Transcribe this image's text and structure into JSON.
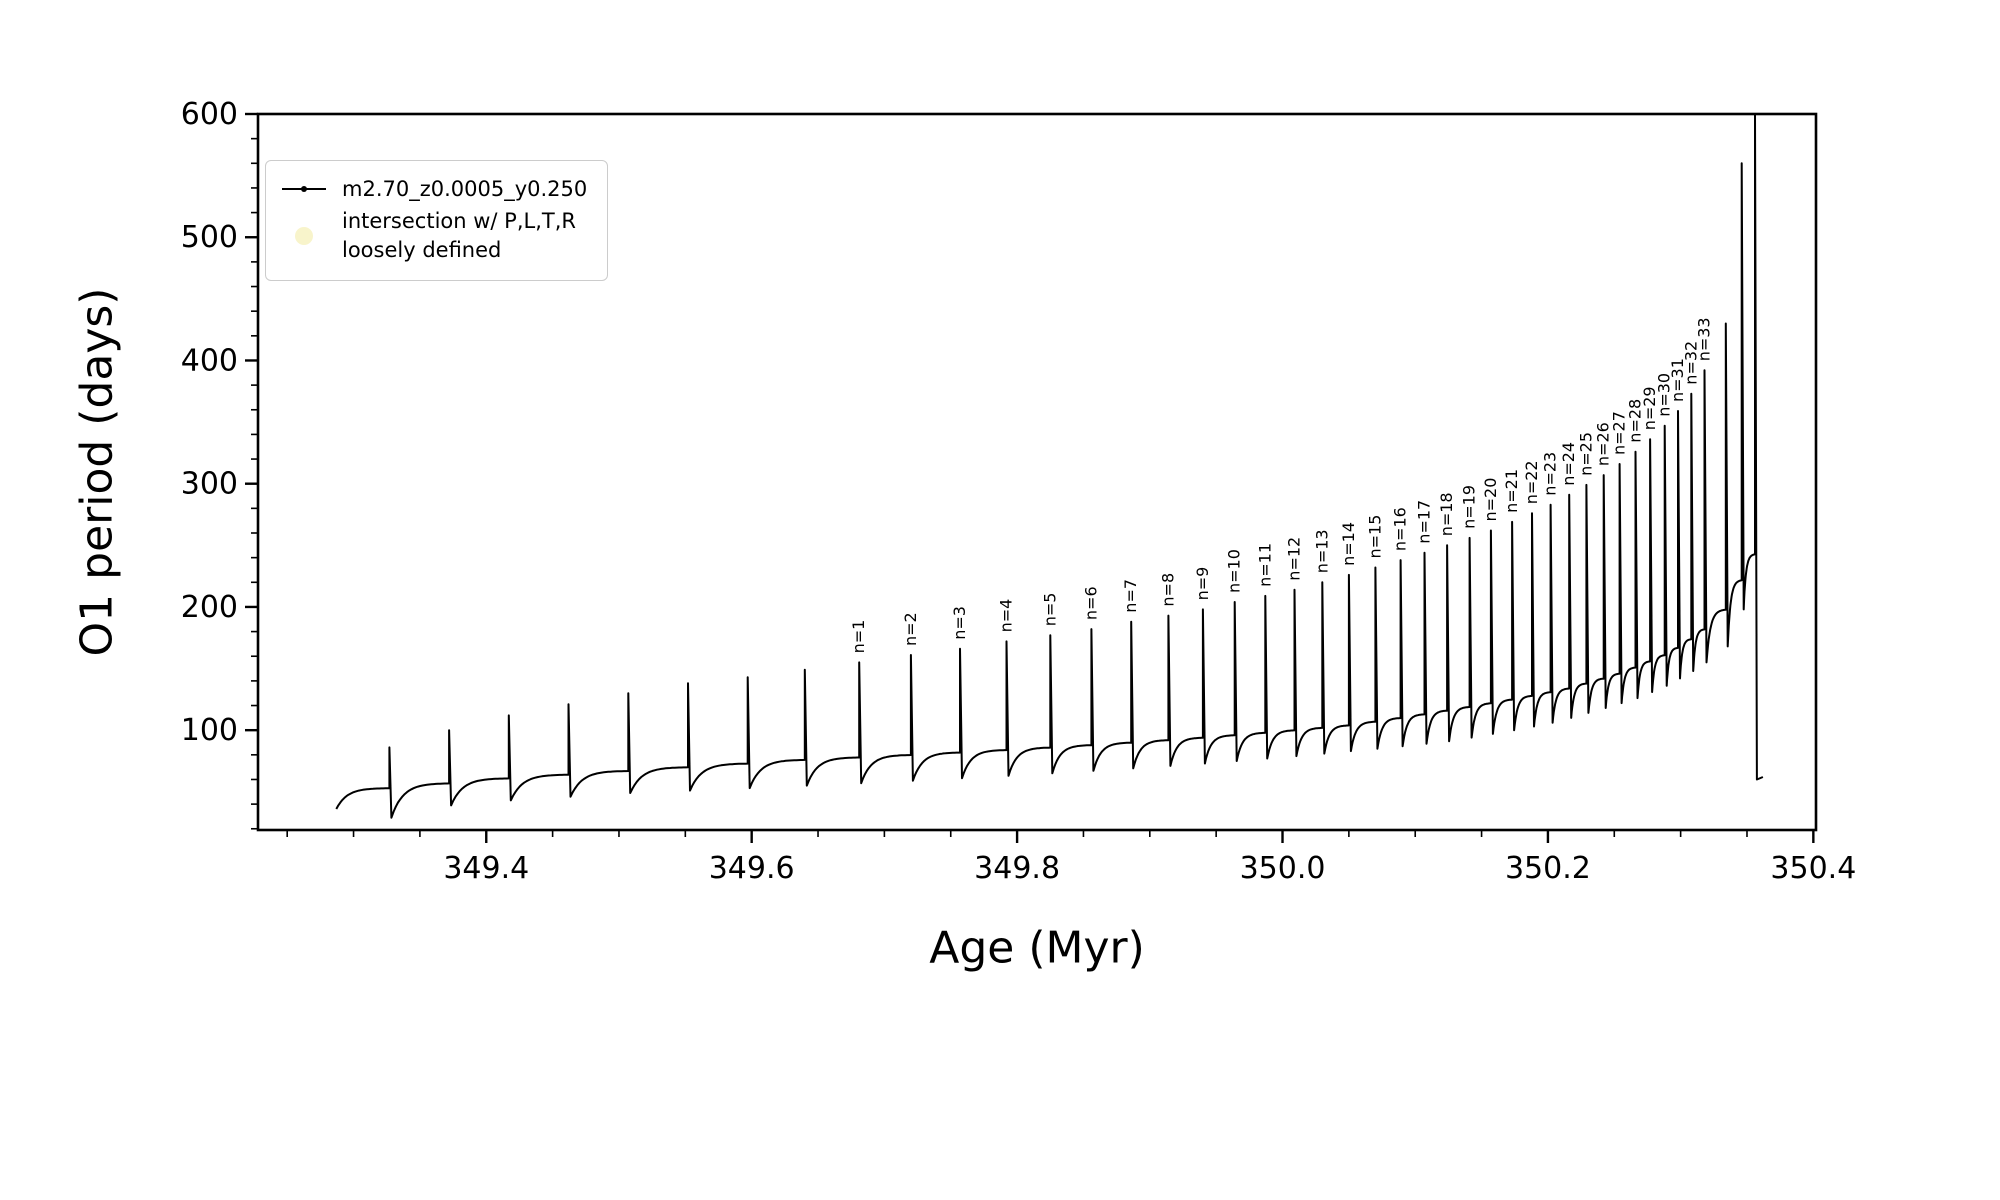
{
  "figure": {
    "background_color": "#ffffff",
    "line_color": "#000000",
    "intersection_marker_color": "#f0e68c"
  },
  "chart_data": {
    "type": "line",
    "title": "",
    "xlabel": "Age (Myr)",
    "ylabel": "O1 period (days)",
    "xlim": [
      349.228,
      350.402
    ],
    "ylim": [
      19,
      600
    ],
    "x_major_ticks": [
      349.4,
      349.6,
      349.8,
      350.0,
      350.2,
      350.4
    ],
    "y_major_ticks": [
      100,
      200,
      300,
      400,
      500,
      600
    ],
    "x_minor_step": 0.05,
    "y_minor_step": 20,
    "grid": false,
    "legend": {
      "position": "upper left",
      "entries": [
        {
          "label": "m2.70_z0.0005_y0.250",
          "marker": "line-dot",
          "color": "#000000"
        },
        {
          "label_lines": [
            "intersection w/ P,L,T,R",
            "loosely defined"
          ],
          "marker": "circle",
          "color": "#f0e68c"
        }
      ]
    },
    "series_name": "m2.70_z0.0005_y0.250",
    "start": {
      "x": 349.287,
      "y": 36
    },
    "end": {
      "x": 350.362,
      "y": 62
    },
    "pulses": [
      {
        "n": null,
        "x": 349.327,
        "peak": 86,
        "base": 53,
        "dip": 29
      },
      {
        "n": null,
        "x": 349.372,
        "peak": 100,
        "base": 57,
        "dip": 39
      },
      {
        "n": null,
        "x": 349.417,
        "peak": 112,
        "base": 61,
        "dip": 43
      },
      {
        "n": null,
        "x": 349.462,
        "peak": 121,
        "base": 64,
        "dip": 46
      },
      {
        "n": null,
        "x": 349.507,
        "peak": 130,
        "base": 67,
        "dip": 49
      },
      {
        "n": null,
        "x": 349.552,
        "peak": 138,
        "base": 70,
        "dip": 51
      },
      {
        "n": null,
        "x": 349.597,
        "peak": 143,
        "base": 73,
        "dip": 53
      },
      {
        "n": null,
        "x": 349.64,
        "peak": 149,
        "base": 76,
        "dip": 55
      },
      {
        "n": 1,
        "x": 349.681,
        "peak": 155,
        "base": 78,
        "dip": 57
      },
      {
        "n": 2,
        "x": 349.72,
        "peak": 161,
        "base": 80,
        "dip": 59
      },
      {
        "n": 3,
        "x": 349.757,
        "peak": 166,
        "base": 82,
        "dip": 61
      },
      {
        "n": 4,
        "x": 349.792,
        "peak": 172,
        "base": 84,
        "dip": 63
      },
      {
        "n": 5,
        "x": 349.825,
        "peak": 177,
        "base": 86,
        "dip": 65
      },
      {
        "n": 6,
        "x": 349.856,
        "peak": 182,
        "base": 88,
        "dip": 67
      },
      {
        "n": 7,
        "x": 349.886,
        "peak": 188,
        "base": 90,
        "dip": 69
      },
      {
        "n": 8,
        "x": 349.914,
        "peak": 193,
        "base": 92,
        "dip": 71
      },
      {
        "n": 9,
        "x": 349.94,
        "peak": 198,
        "base": 94,
        "dip": 73
      },
      {
        "n": 10,
        "x": 349.964,
        "peak": 204,
        "base": 96,
        "dip": 75
      },
      {
        "n": 11,
        "x": 349.987,
        "peak": 209,
        "base": 98,
        "dip": 77
      },
      {
        "n": 12,
        "x": 350.009,
        "peak": 214,
        "base": 100,
        "dip": 79
      },
      {
        "n": 13,
        "x": 350.03,
        "peak": 220,
        "base": 102,
        "dip": 81
      },
      {
        "n": 14,
        "x": 350.05,
        "peak": 226,
        "base": 104,
        "dip": 83
      },
      {
        "n": 15,
        "x": 350.07,
        "peak": 232,
        "base": 107,
        "dip": 85
      },
      {
        "n": 16,
        "x": 350.089,
        "peak": 238,
        "base": 110,
        "dip": 87
      },
      {
        "n": 17,
        "x": 350.107,
        "peak": 244,
        "base": 113,
        "dip": 89
      },
      {
        "n": 18,
        "x": 350.124,
        "peak": 250,
        "base": 116,
        "dip": 91
      },
      {
        "n": 19,
        "x": 350.141,
        "peak": 256,
        "base": 119,
        "dip": 94
      },
      {
        "n": 20,
        "x": 350.157,
        "peak": 262,
        "base": 122,
        "dip": 97
      },
      {
        "n": 21,
        "x": 350.173,
        "peak": 269,
        "base": 125,
        "dip": 100
      },
      {
        "n": 22,
        "x": 350.188,
        "peak": 276,
        "base": 128,
        "dip": 103
      },
      {
        "n": 23,
        "x": 350.202,
        "peak": 283,
        "base": 131,
        "dip": 106
      },
      {
        "n": 24,
        "x": 350.216,
        "peak": 291,
        "base": 134,
        "dip": 110
      },
      {
        "n": 25,
        "x": 350.229,
        "peak": 299,
        "base": 138,
        "dip": 114
      },
      {
        "n": 26,
        "x": 350.242,
        "peak": 307,
        "base": 142,
        "dip": 118
      },
      {
        "n": 27,
        "x": 350.254,
        "peak": 316,
        "base": 146,
        "dip": 122
      },
      {
        "n": 28,
        "x": 350.266,
        "peak": 326,
        "base": 151,
        "dip": 126
      },
      {
        "n": 29,
        "x": 350.277,
        "peak": 336,
        "base": 156,
        "dip": 131
      },
      {
        "n": 30,
        "x": 350.288,
        "peak": 347,
        "base": 161,
        "dip": 136
      },
      {
        "n": 31,
        "x": 350.298,
        "peak": 359,
        "base": 167,
        "dip": 142
      },
      {
        "n": 32,
        "x": 350.308,
        "peak": 373,
        "base": 174,
        "dip": 148
      },
      {
        "n": 33,
        "x": 350.318,
        "peak": 392,
        "base": 182,
        "dip": 155
      },
      {
        "n": null,
        "x": 350.334,
        "peak": 430,
        "base": 198,
        "dip": 168
      },
      {
        "n": null,
        "x": 350.346,
        "peak": 560,
        "base": 222,
        "dip": 198
      },
      {
        "n": null,
        "x": 350.356,
        "peak": 600,
        "base": 243,
        "dip": 60
      }
    ]
  }
}
